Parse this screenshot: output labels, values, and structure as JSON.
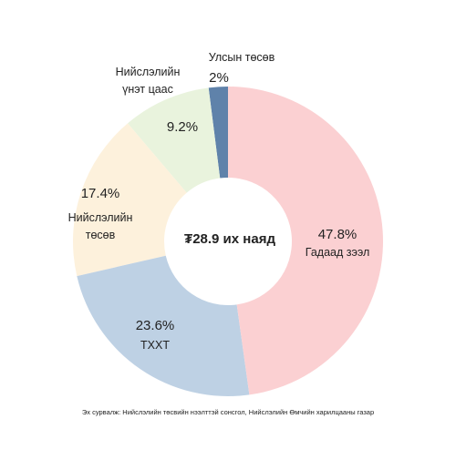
{
  "chart_data": {
    "type": "donut",
    "center_label": "₮28.9 их наяд",
    "categories": [
      "Гадаад зээл",
      "ТХХТ",
      "Нийслэлийн\nтөсөв",
      "Нийслэлийн\nүнэт цаас",
      "Улсын төсөв"
    ],
    "values": [
      47.8,
      23.6,
      17.4,
      9.2,
      2
    ],
    "value_labels": [
      "47.8%",
      "23.6%",
      "17.4%",
      "9.2%",
      "2%"
    ],
    "colors": [
      "#fbd0d2",
      "#bed1e4",
      "#fdf1dc",
      "#e9f3dd",
      "#5f82aa"
    ],
    "source": "Эх сурвалж: Нийслэлийн төсвийн нээлттэй сонсгол, Нийслэлийн Өмчийн харилцааны газар"
  }
}
